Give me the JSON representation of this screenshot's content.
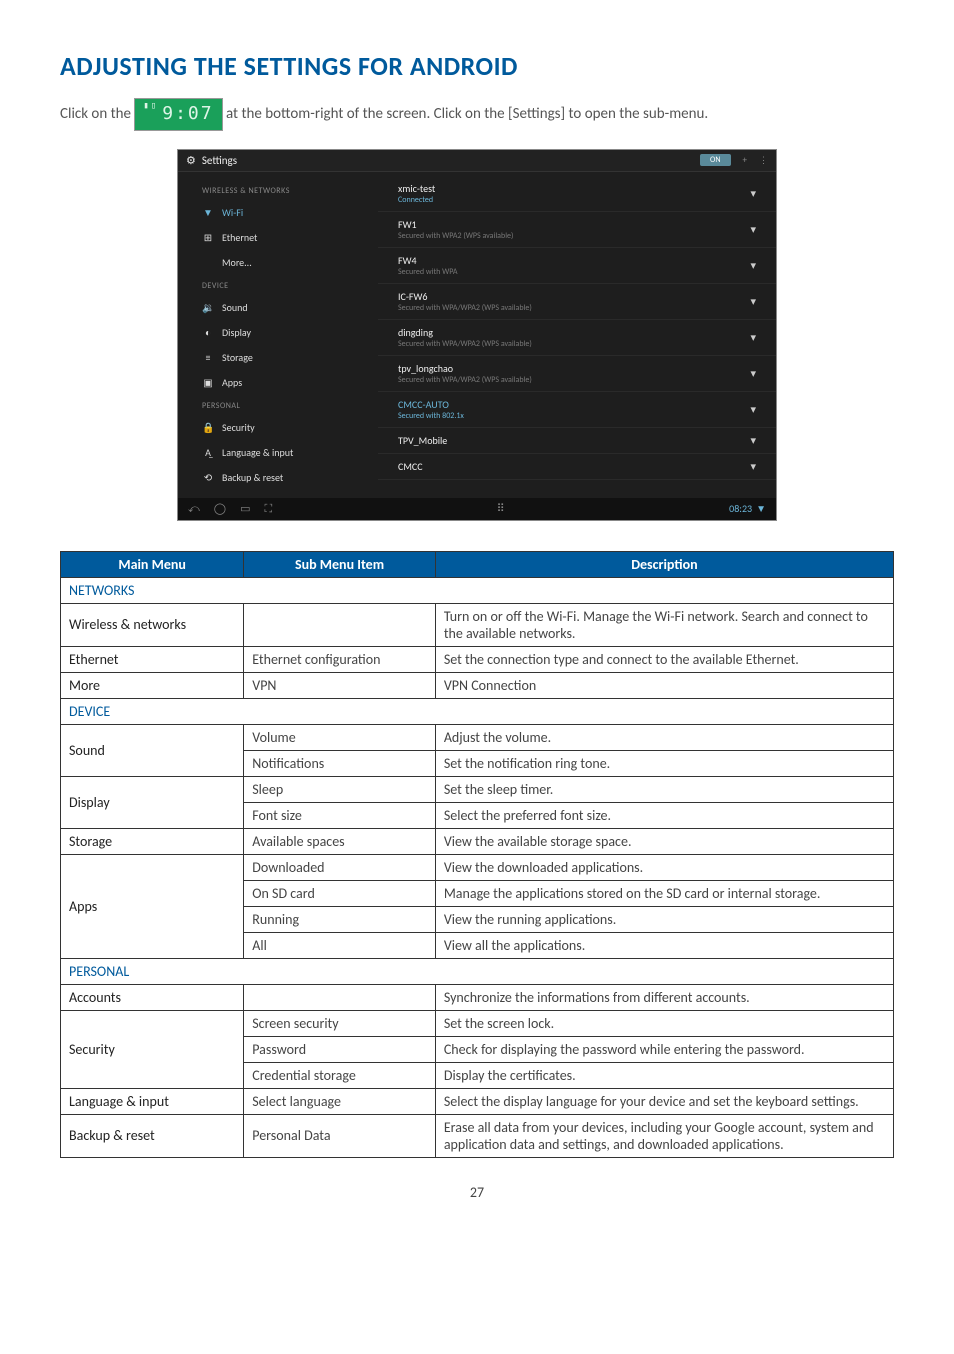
{
  "heading": "ADJUSTING THE SETTINGS FOR ANDROID",
  "intro_pre": "Click on the ",
  "intro_post": " at the bottom-right of the screen. Click on the [Settings] to open the sub-menu.",
  "time_badge": "9:07",
  "shot": {
    "title": "Settings",
    "on_label": "ON",
    "side_sections": [
      {
        "label": "WIRELESS & NETWORKS",
        "items": [
          {
            "icon": "wifi-icon",
            "glyph": "▼",
            "text": "Wi-Fi",
            "active": true
          },
          {
            "icon": "ethernet-icon",
            "glyph": "⊞",
            "text": "Ethernet"
          },
          {
            "icon": "",
            "glyph": "",
            "text": "More..."
          }
        ]
      },
      {
        "label": "DEVICE",
        "items": [
          {
            "icon": "sound-icon",
            "glyph": "🔉",
            "text": "Sound"
          },
          {
            "icon": "display-icon",
            "glyph": "◐",
            "text": "Display"
          },
          {
            "icon": "storage-icon",
            "glyph": "≡",
            "text": "Storage"
          },
          {
            "icon": "apps-icon",
            "glyph": "▣",
            "text": "Apps"
          }
        ]
      },
      {
        "label": "PERSONAL",
        "items": [
          {
            "icon": "security-icon",
            "glyph": "🔒",
            "text": "Security"
          },
          {
            "icon": "language-icon",
            "glyph": "A̲",
            "text": "Language & input"
          },
          {
            "icon": "backup-icon",
            "glyph": "⟲",
            "text": "Backup & reset"
          }
        ]
      }
    ],
    "wifi": [
      {
        "ssid": "xmic-test",
        "sub": "Connected",
        "connected": true
      },
      {
        "ssid": "FW1",
        "sub": "Secured with WPA2 (WPS available)"
      },
      {
        "ssid": "FW4",
        "sub": "Secured with WPA"
      },
      {
        "ssid": "IC-FW6",
        "sub": "Secured with WPA/WPA2 (WPS available)"
      },
      {
        "ssid": "dingding",
        "sub": "Secured with WPA/WPA2 (WPS available)"
      },
      {
        "ssid": "tpv_longchao",
        "sub": "Secured with WPA/WPA2 (WPS available)"
      },
      {
        "ssid": "CMCC-AUTO",
        "sub": "Secured with 802.1x",
        "auto": true
      },
      {
        "ssid": "TPV_Mobile",
        "sub": ""
      },
      {
        "ssid": "CMCC",
        "sub": ""
      }
    ],
    "footer_time": "08:23"
  },
  "table": {
    "headers": [
      "Main Menu",
      "Sub Menu Item",
      "Description"
    ],
    "sections": [
      {
        "title": "NETWORKS",
        "rows": [
          {
            "main": "Wireless & networks",
            "sub": "",
            "desc": "Turn on or off the Wi-Fi. Manage the Wi-Fi network. Search and connect to the available networks."
          },
          {
            "main": "Ethernet",
            "sub": "Ethernet configuration",
            "desc": "Set the connection type and connect to the available Ethernet."
          },
          {
            "main": "More",
            "sub": "VPN",
            "desc": "VPN Connection"
          }
        ]
      },
      {
        "title": "DEVICE",
        "rows": [
          {
            "main": "Sound",
            "rowspan": 2,
            "sub": "Volume",
            "desc": "Adjust the volume."
          },
          {
            "sub": "Notifications",
            "desc": "Set the notification ring tone."
          },
          {
            "main": "Display",
            "rowspan": 2,
            "sub": "Sleep",
            "desc": "Set the sleep timer."
          },
          {
            "sub": "Font size",
            "desc": "Select the preferred font size."
          },
          {
            "main": "Storage",
            "sub": "Available spaces",
            "desc": "View the available storage space."
          },
          {
            "main": "Apps",
            "rowspan": 4,
            "sub": "Downloaded",
            "desc": "View the downloaded applications."
          },
          {
            "sub": "On SD card",
            "desc": "Manage the applications stored on the SD card or internal storage."
          },
          {
            "sub": "Running",
            "desc": "View the running applications."
          },
          {
            "sub": "All",
            "desc": "View all the applications."
          }
        ]
      },
      {
        "title": "PERSONAL",
        "rows": [
          {
            "main": "Accounts",
            "sub": "",
            "desc": "Synchronize the informations from different accounts."
          },
          {
            "main": "Security",
            "rowspan": 3,
            "sub": "Screen security",
            "desc": "Set the screen lock."
          },
          {
            "sub": "Password",
            "desc": "Check for displaying the password while entering the password."
          },
          {
            "sub": "Credential storage",
            "desc": "Display the certificates."
          },
          {
            "main": "Language & input",
            "sub": "Select language",
            "desc": "Select the display language for your device and set the keyboard settings."
          },
          {
            "main": "Backup & reset",
            "sub": "Personal Data",
            "desc": "Erase all data from your devices, including your Google account, system and application data and settings, and downloaded applications."
          }
        ]
      }
    ]
  },
  "page_number": "27",
  "colors": {
    "heading": "#005a9c",
    "table_header_bg": "#005a9c",
    "section_text": "#005a9c",
    "shot_bg": "#1e1e1e",
    "accent": "#6bb5d8"
  }
}
